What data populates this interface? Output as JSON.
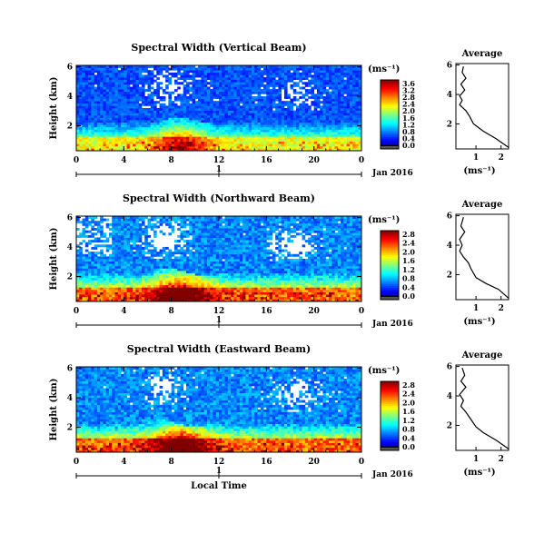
{
  "chart_data": [
    {
      "type": "heatmap",
      "title": "Spectral Width (Vertical Beam)",
      "ylabel": "Height (km)",
      "xlabel": "",
      "x_ticks": [
        "0",
        "4",
        "8",
        "12",
        "16",
        "20",
        "0"
      ],
      "y_ticks": [
        "2",
        "4",
        "6"
      ],
      "date_ticks": [
        "1"
      ],
      "date_label": "Jan 2016",
      "xlim": [
        0,
        24
      ],
      "ylim": [
        0.3,
        6.1
      ],
      "colorbar": {
        "unit": "(ms⁻¹)",
        "ticks": [
          "3.6",
          "3.2",
          "2.8",
          "2.4",
          "2.0",
          "1.6",
          "1.2",
          "0.8",
          "0.4",
          "0.0"
        ],
        "range": [
          0,
          3.8
        ]
      },
      "profile": {
        "title": "Average",
        "xlabel": "(ms⁻¹)",
        "x_ticks": [
          "1",
          "2"
        ],
        "y_ticks": [
          "2",
          "4",
          "6"
        ],
        "xlim": [
          0.2,
          2.3
        ],
        "ylim": [
          0.3,
          6.1
        ],
        "points": [
          [
            2.3,
            0.4
          ],
          [
            1.8,
            1.0
          ],
          [
            1.3,
            1.5
          ],
          [
            0.9,
            2.0
          ],
          [
            0.75,
            2.5
          ],
          [
            0.6,
            2.9
          ],
          [
            0.35,
            3.3
          ],
          [
            0.45,
            3.6
          ],
          [
            0.35,
            3.9
          ],
          [
            0.55,
            4.3
          ],
          [
            0.4,
            4.7
          ],
          [
            0.6,
            5.1
          ],
          [
            0.45,
            5.5
          ],
          [
            0.5,
            5.9
          ]
        ]
      }
    },
    {
      "type": "heatmap",
      "title": "Spectral Width (Northward Beam)",
      "ylabel": "Height (km)",
      "xlabel": "",
      "x_ticks": [
        "0",
        "4",
        "8",
        "12",
        "16",
        "20",
        "0"
      ],
      "y_ticks": [
        "2",
        "4",
        "6"
      ],
      "date_ticks": [
        "1"
      ],
      "date_label": "Jan 2016",
      "xlim": [
        0,
        24
      ],
      "ylim": [
        0.3,
        6.1
      ],
      "colorbar": {
        "unit": "(ms⁻¹)",
        "ticks": [
          "2.8",
          "2.4",
          "2.0",
          "1.6",
          "1.2",
          "0.8",
          "0.4",
          "0.0"
        ],
        "range": [
          0,
          3.0
        ]
      },
      "profile": {
        "title": "Average",
        "xlabel": "(ms⁻¹)",
        "x_ticks": [
          "1",
          "2"
        ],
        "y_ticks": [
          "2",
          "4",
          "6"
        ],
        "xlim": [
          0.2,
          2.3
        ],
        "ylim": [
          0.3,
          6.1
        ],
        "points": [
          [
            2.3,
            0.4
          ],
          [
            1.9,
            1.0
          ],
          [
            1.4,
            1.4
          ],
          [
            1.0,
            1.8
          ],
          [
            0.8,
            2.4
          ],
          [
            0.7,
            2.8
          ],
          [
            0.5,
            3.2
          ],
          [
            0.35,
            3.6
          ],
          [
            0.45,
            4.0
          ],
          [
            0.35,
            4.4
          ],
          [
            0.55,
            4.9
          ],
          [
            0.4,
            5.3
          ],
          [
            0.5,
            5.9
          ]
        ]
      }
    },
    {
      "type": "heatmap",
      "title": "Spectral Width (Eastward Beam)",
      "ylabel": "Height (km)",
      "xlabel": "Local Time",
      "x_ticks": [
        "0",
        "4",
        "8",
        "12",
        "16",
        "20",
        "0"
      ],
      "y_ticks": [
        "2",
        "4",
        "6"
      ],
      "date_ticks": [
        "1"
      ],
      "date_label": "Jan 2016",
      "xlim": [
        0,
        24
      ],
      "ylim": [
        0.3,
        6.1
      ],
      "colorbar": {
        "unit": "(ms⁻¹)",
        "ticks": [
          "2.8",
          "2.4",
          "2.0",
          "1.6",
          "1.2",
          "0.8",
          "0.4",
          "0.0"
        ],
        "range": [
          0,
          3.0
        ]
      },
      "profile": {
        "title": "Average",
        "xlabel": "(ms⁻¹)",
        "x_ticks": [
          "1",
          "2"
        ],
        "y_ticks": [
          "2",
          "4",
          "6"
        ],
        "xlim": [
          0.2,
          2.3
        ],
        "ylim": [
          0.3,
          6.1
        ],
        "points": [
          [
            2.3,
            0.4
          ],
          [
            1.8,
            1.0
          ],
          [
            1.3,
            1.5
          ],
          [
            1.0,
            1.9
          ],
          [
            0.8,
            2.4
          ],
          [
            0.6,
            2.9
          ],
          [
            0.4,
            3.3
          ],
          [
            0.5,
            3.7
          ],
          [
            0.35,
            4.1
          ],
          [
            0.6,
            4.6
          ],
          [
            0.4,
            5.0
          ],
          [
            0.55,
            5.4
          ],
          [
            0.45,
            5.9
          ]
        ]
      }
    }
  ]
}
